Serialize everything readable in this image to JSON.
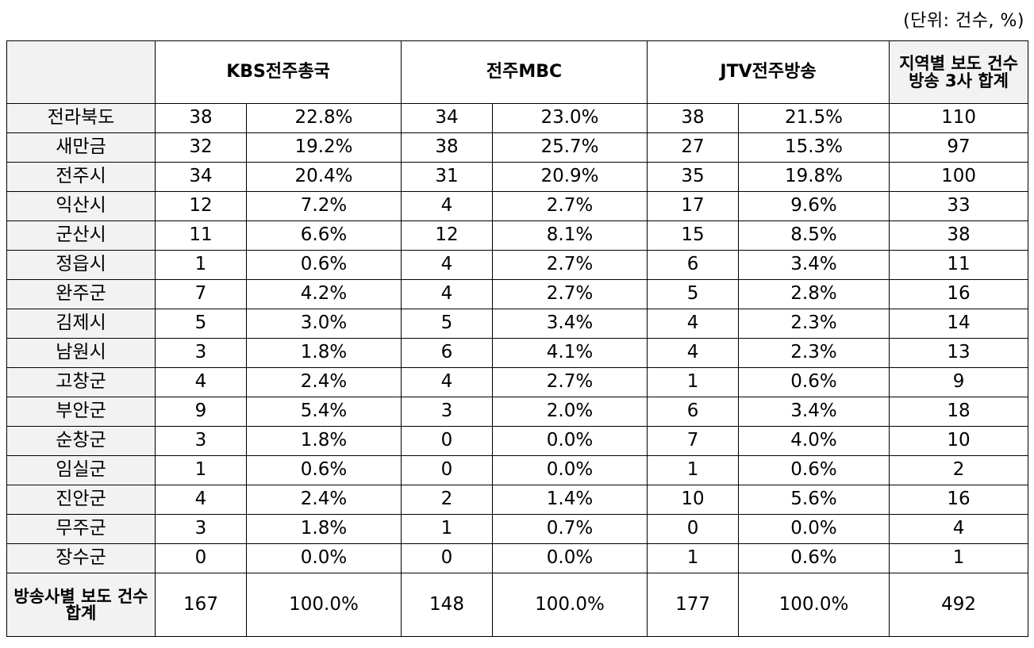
{
  "unit_note": "(단위: 건수, %)",
  "header": {
    "corner": "",
    "broadcasters": [
      "KBS전주총국",
      "전주MBC",
      "JTV전주방송"
    ],
    "total": "지역별 보도 건수 방송 3사 합계"
  },
  "rows": [
    {
      "region": "전라북도",
      "kbs_count": "38",
      "kbs_pct": "22.8%",
      "mbc_count": "34",
      "mbc_pct": "23.0%",
      "jtv_count": "38",
      "jtv_pct": "21.5%",
      "total": "110"
    },
    {
      "region": "새만금",
      "kbs_count": "32",
      "kbs_pct": "19.2%",
      "mbc_count": "38",
      "mbc_pct": "25.7%",
      "jtv_count": "27",
      "jtv_pct": "15.3%",
      "total": "97"
    },
    {
      "region": "전주시",
      "kbs_count": "34",
      "kbs_pct": "20.4%",
      "mbc_count": "31",
      "mbc_pct": "20.9%",
      "jtv_count": "35",
      "jtv_pct": "19.8%",
      "total": "100"
    },
    {
      "region": "익산시",
      "kbs_count": "12",
      "kbs_pct": "7.2%",
      "mbc_count": "4",
      "mbc_pct": "2.7%",
      "jtv_count": "17",
      "jtv_pct": "9.6%",
      "total": "33"
    },
    {
      "region": "군산시",
      "kbs_count": "11",
      "kbs_pct": "6.6%",
      "mbc_count": "12",
      "mbc_pct": "8.1%",
      "jtv_count": "15",
      "jtv_pct": "8.5%",
      "total": "38"
    },
    {
      "region": "정읍시",
      "kbs_count": "1",
      "kbs_pct": "0.6%",
      "mbc_count": "4",
      "mbc_pct": "2.7%",
      "jtv_count": "6",
      "jtv_pct": "3.4%",
      "total": "11"
    },
    {
      "region": "완주군",
      "kbs_count": "7",
      "kbs_pct": "4.2%",
      "mbc_count": "4",
      "mbc_pct": "2.7%",
      "jtv_count": "5",
      "jtv_pct": "2.8%",
      "total": "16"
    },
    {
      "region": "김제시",
      "kbs_count": "5",
      "kbs_pct": "3.0%",
      "mbc_count": "5",
      "mbc_pct": "3.4%",
      "jtv_count": "4",
      "jtv_pct": "2.3%",
      "total": "14"
    },
    {
      "region": "남원시",
      "kbs_count": "3",
      "kbs_pct": "1.8%",
      "mbc_count": "6",
      "mbc_pct": "4.1%",
      "jtv_count": "4",
      "jtv_pct": "2.3%",
      "total": "13"
    },
    {
      "region": "고창군",
      "kbs_count": "4",
      "kbs_pct": "2.4%",
      "mbc_count": "4",
      "mbc_pct": "2.7%",
      "jtv_count": "1",
      "jtv_pct": "0.6%",
      "total": "9"
    },
    {
      "region": "부안군",
      "kbs_count": "9",
      "kbs_pct": "5.4%",
      "mbc_count": "3",
      "mbc_pct": "2.0%",
      "jtv_count": "6",
      "jtv_pct": "3.4%",
      "total": "18"
    },
    {
      "region": "순창군",
      "kbs_count": "3",
      "kbs_pct": "1.8%",
      "mbc_count": "0",
      "mbc_pct": "0.0%",
      "jtv_count": "7",
      "jtv_pct": "4.0%",
      "total": "10"
    },
    {
      "region": "임실군",
      "kbs_count": "1",
      "kbs_pct": "0.6%",
      "mbc_count": "0",
      "mbc_pct": "0.0%",
      "jtv_count": "1",
      "jtv_pct": "0.6%",
      "total": "2"
    },
    {
      "region": "진안군",
      "kbs_count": "4",
      "kbs_pct": "2.4%",
      "mbc_count": "2",
      "mbc_pct": "1.4%",
      "jtv_count": "10",
      "jtv_pct": "5.6%",
      "total": "16"
    },
    {
      "region": "무주군",
      "kbs_count": "3",
      "kbs_pct": "1.8%",
      "mbc_count": "1",
      "mbc_pct": "0.7%",
      "jtv_count": "0",
      "jtv_pct": "0.0%",
      "total": "4"
    },
    {
      "region": "장수군",
      "kbs_count": "0",
      "kbs_pct": "0.0%",
      "mbc_count": "0",
      "mbc_pct": "0.0%",
      "jtv_count": "1",
      "jtv_pct": "0.6%",
      "total": "1"
    }
  ],
  "summary": {
    "label": "방송사별 보도 건수 합계",
    "kbs_count": "167",
    "kbs_pct": "100.0%",
    "mbc_count": "148",
    "mbc_pct": "100.0%",
    "jtv_count": "177",
    "jtv_pct": "100.0%",
    "total": "492"
  }
}
